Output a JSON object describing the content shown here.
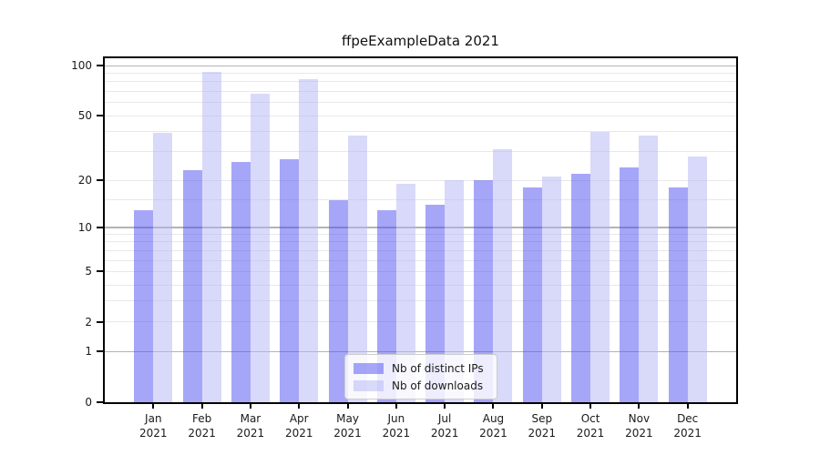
{
  "title": "ffpeExampleData 2021",
  "chart_data": {
    "type": "bar",
    "title": "ffpeExampleData 2021",
    "xlabel": "",
    "ylabel": "",
    "y_scale": "log1p",
    "ylim": [
      0,
      111
    ],
    "y_tick_values": [
      0,
      1,
      2,
      5,
      10,
      20,
      50,
      100
    ],
    "y_tick_labels": [
      "0",
      "1",
      "2",
      "5",
      "10",
      "20",
      "50",
      "100"
    ],
    "major_gridlines": [
      1,
      10,
      100
    ],
    "minor_gridlines": [
      2,
      3,
      4,
      5,
      6,
      7,
      8,
      9,
      15,
      20,
      30,
      40,
      50,
      60,
      70,
      80,
      90
    ],
    "grid": true,
    "categories": [
      "Jan",
      "Feb",
      "Mar",
      "Apr",
      "May",
      "Jun",
      "Jul",
      "Aug",
      "Sep",
      "Oct",
      "Nov",
      "Dec"
    ],
    "x_tick_second_line": "2021",
    "series": [
      {
        "name": "Nb of distinct IPs",
        "key": "distinct-ips",
        "color": "rgba(77,77,242,0.5)",
        "values": [
          13,
          23,
          26,
          27,
          15,
          13,
          14,
          20,
          18,
          22,
          24,
          18
        ]
      },
      {
        "name": "Nb of downloads",
        "key": "downloads",
        "color": "rgba(179,179,245,0.5)",
        "values": [
          39,
          92,
          68,
          83,
          38,
          19,
          20,
          31,
          21,
          40,
          38,
          28
        ]
      }
    ],
    "legend_position": "inside-bottom-center"
  },
  "colors": {
    "background": "#ffffff",
    "frame": "#000000",
    "grid_major": "#b3b3b3",
    "grid_minor": "#e8e8e8",
    "text": "#1a1a1a",
    "legend_border": "#cccccc",
    "legend_background": "rgba(255,255,255,0.8)"
  }
}
